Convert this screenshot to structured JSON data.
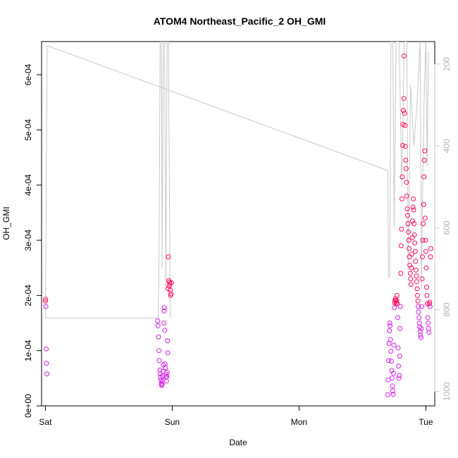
{
  "chart_data": {
    "type": "scatter",
    "title": "ATOM4 Northeast_Pacific_2 OH_GMI",
    "xlabel": "Date",
    "ylabel": "OH_GMI",
    "x_unit": "days since Sat 00:00",
    "x_ticks": [
      {
        "label": "Sat",
        "value": 0
      },
      {
        "label": "Sun",
        "value": 1
      },
      {
        "label": "Mon",
        "value": 2
      },
      {
        "label": "Tue",
        "value": 3
      }
    ],
    "xlim": [
      -0.03,
      3.07
    ],
    "y_ticks": [
      "0e+00",
      "1e-04",
      "2e-04",
      "3e-04",
      "4e-04",
      "5e-04",
      "6e-04"
    ],
    "ylim": [
      0,
      0.00066
    ],
    "secondary_axis": {
      "ticks": [
        "200",
        "400",
        "600",
        "800",
        "1000"
      ],
      "ylim": [
        1035,
        145
      ],
      "reversed": true,
      "color": "#c8c8c8"
    },
    "grid": false,
    "series": [
      {
        "kind": "points",
        "marker": "open-circle",
        "color_low": "#d21ee6",
        "color_high": "#ff0a5a",
        "color_threshold": 0.000185,
        "points": [
          [
            0.0,
            0.00019
          ],
          [
            0.002,
            0.000193
          ],
          [
            0.004,
            0.00018
          ],
          [
            0.006,
            0.000103
          ],
          [
            0.009,
            7.7e-05
          ],
          [
            0.012,
            5.8e-05
          ],
          [
            0.885,
            0.000154
          ],
          [
            0.888,
            0.000145
          ],
          [
            0.892,
            0.000125
          ],
          [
            0.895,
            0.0001
          ],
          [
            0.898,
            8.2e-05
          ],
          [
            0.902,
            6.5e-05
          ],
          [
            0.905,
            5.8e-05
          ],
          [
            0.908,
            5.2e-05
          ],
          [
            0.911,
            4.7e-05
          ],
          [
            0.914,
            4.1e-05
          ],
          [
            0.917,
            3.7e-05
          ],
          [
            0.92,
            3.9e-05
          ],
          [
            0.923,
            4.4e-05
          ],
          [
            0.925,
            5.4e-05
          ],
          [
            0.928,
            6.2e-05
          ],
          [
            0.931,
            7.4e-05
          ],
          [
            0.934,
            0.00015
          ],
          [
            0.936,
            0.000172
          ],
          [
            0.938,
            0.000178
          ],
          [
            0.941,
            0.000137
          ],
          [
            0.944,
            7.6e-05
          ],
          [
            0.947,
            6.9e-05
          ],
          [
            0.95,
            5.2e-05
          ],
          [
            0.952,
            5.7e-05
          ],
          [
            0.955,
            4.5e-05
          ],
          [
            0.957,
            5.3e-05
          ],
          [
            0.96,
            6.1e-05
          ],
          [
            0.962,
            0.000118
          ],
          [
            0.965,
            9.6e-05
          ],
          [
            0.968,
            0.000212
          ],
          [
            0.97,
            0.00027
          ],
          [
            0.973,
            0.000227
          ],
          [
            0.976,
            0.000217
          ],
          [
            0.979,
            0.000224
          ],
          [
            0.982,
            0.000221
          ],
          [
            0.985,
            0.00021
          ],
          [
            0.988,
            0.0002
          ],
          [
            0.991,
            0.000203
          ],
          [
            0.994,
            0.000223
          ],
          [
            2.7,
            2e-05
          ],
          [
            2.703,
            4.7e-05
          ],
          [
            2.706,
            8.2e-05
          ],
          [
            2.709,
            0.000113
          ],
          [
            2.712,
            0.000136
          ],
          [
            2.715,
            0.00015
          ],
          [
            2.718,
            0.000145
          ],
          [
            2.721,
            0.00012
          ],
          [
            2.724,
            9.9e-05
          ],
          [
            2.727,
            8.1e-05
          ],
          [
            2.73,
            6.4e-05
          ],
          [
            2.733,
            5e-05
          ],
          [
            2.736,
            3.6e-05
          ],
          [
            2.739,
            2.7e-05
          ],
          [
            2.742,
            2.1e-05
          ],
          [
            2.745,
            5.9e-05
          ],
          [
            2.748,
            0.00011
          ],
          [
            2.751,
            0.000178
          ],
          [
            2.754,
            0.000187
          ],
          [
            2.757,
            0.000191
          ],
          [
            2.76,
            0.000194
          ],
          [
            2.763,
            0.00019
          ],
          [
            2.766,
            0.000186
          ],
          [
            2.769,
            0.000191
          ],
          [
            2.772,
            0.0002
          ],
          [
            2.775,
            0.000185
          ],
          [
            2.778,
            0.00016
          ],
          [
            2.781,
            0.000105
          ],
          [
            2.784,
            7.2e-05
          ],
          [
            2.787,
            5e-05
          ],
          [
            2.79,
            5.5e-05
          ],
          [
            2.793,
            9e-05
          ],
          [
            2.796,
            0.00014
          ],
          [
            2.799,
            0.00018
          ],
          [
            2.802,
            0.00024
          ],
          [
            2.805,
            0.00029
          ],
          [
            2.808,
            0.00032
          ],
          [
            2.811,
            0.000375
          ],
          [
            2.814,
            0.000415
          ],
          [
            2.817,
            0.000472
          ],
          [
            2.82,
            0.00051
          ],
          [
            2.823,
            0.000535
          ],
          [
            2.826,
            0.000557
          ],
          [
            2.829,
            0.000634
          ],
          [
            2.832,
            0.00053
          ],
          [
            2.835,
            0.000508
          ],
          [
            2.838,
            0.00047
          ],
          [
            2.841,
            0.000445
          ],
          [
            2.844,
            0.00043
          ],
          [
            2.847,
            0.000405
          ],
          [
            2.85,
            0.00038
          ],
          [
            2.853,
            0.000357
          ],
          [
            2.856,
            0.000345
          ],
          [
            2.859,
            0.00033
          ],
          [
            2.862,
            0.000315
          ],
          [
            2.865,
            0.0003
          ],
          [
            2.868,
            0.000285
          ],
          [
            2.871,
            0.00027
          ],
          [
            2.874,
            0.000255
          ],
          [
            2.877,
            0.00024
          ],
          [
            2.88,
            0.00023
          ],
          [
            2.883,
            0.00022
          ],
          [
            2.886,
            0.00025
          ],
          [
            2.889,
            0.000275
          ],
          [
            2.892,
            0.000305
          ],
          [
            2.895,
            0.000335
          ],
          [
            2.898,
            0.00036
          ],
          [
            2.901,
            0.000375
          ],
          [
            2.904,
            0.000355
          ],
          [
            2.907,
            0.00033
          ],
          [
            2.91,
            0.00031
          ],
          [
            2.913,
            0.000295
          ],
          [
            2.916,
            0.00028
          ],
          [
            2.919,
            0.000262
          ],
          [
            2.922,
            0.000246
          ],
          [
            2.925,
            0.000235
          ],
          [
            2.928,
            0.000225
          ],
          [
            2.931,
            0.000212
          ],
          [
            2.934,
            0.0002
          ],
          [
            2.937,
            0.00019
          ],
          [
            2.94,
            0.00018
          ],
          [
            2.943,
            0.00017
          ],
          [
            2.946,
            0.00016
          ],
          [
            2.949,
            0.00015
          ],
          [
            2.952,
            0.000143
          ],
          [
            2.955,
            0.000135
          ],
          [
            2.958,
            0.000128
          ],
          [
            2.961,
            0.000124
          ],
          [
            2.964,
            0.00014
          ],
          [
            2.967,
            0.00018
          ],
          [
            2.97,
            0.00023
          ],
          [
            2.973,
            0.00027
          ],
          [
            2.976,
            0.0003
          ],
          [
            2.979,
            0.00033
          ],
          [
            2.982,
            0.000365
          ],
          [
            2.985,
            0.000415
          ],
          [
            2.988,
            0.000445
          ],
          [
            2.991,
            0.000462
          ],
          [
            2.994,
            0.00034
          ],
          [
            2.997,
            0.0003
          ],
          [
            3.0,
            0.00028
          ],
          [
            3.003,
            0.00025
          ],
          [
            3.006,
            0.000215
          ],
          [
            3.009,
            0.0002
          ],
          [
            3.012,
            0.000185
          ],
          [
            3.015,
            0.00016
          ],
          [
            3.018,
            0.00015
          ],
          [
            3.021,
            0.00014
          ],
          [
            3.024,
            0.000133
          ],
          [
            3.027,
            0.000185
          ],
          [
            3.03,
            0.000188
          ],
          [
            3.033,
            0.00018
          ],
          [
            3.036,
            0.00027
          ],
          [
            3.039,
            0.000285
          ]
        ]
      },
      {
        "kind": "line",
        "axis": "secondary",
        "color": "#c8c8c8",
        "points": [
          [
            0.0,
            820
          ],
          [
            0.015,
            155
          ],
          [
            2.7,
            460
          ],
          [
            2.705,
            720
          ],
          [
            2.715,
            720
          ],
          [
            2.725,
            145
          ],
          [
            2.74,
            145
          ],
          [
            2.75,
            600
          ],
          [
            2.765,
            145
          ],
          [
            2.79,
            145
          ],
          [
            2.81,
            500
          ],
          [
            2.83,
            145
          ],
          [
            2.85,
            145
          ],
          [
            2.86,
            700
          ],
          [
            2.88,
            250
          ],
          [
            2.905,
            400
          ],
          [
            2.93,
            300
          ],
          [
            2.955,
            145
          ],
          [
            2.965,
            750
          ],
          [
            2.975,
            500
          ],
          [
            2.985,
            300
          ],
          [
            3.0,
            145
          ],
          [
            3.01,
            450
          ],
          [
            3.02,
            170
          ]
        ]
      },
      {
        "kind": "line",
        "axis": "secondary",
        "color": "#c8c8c8",
        "points": [
          [
            0.0,
            820
          ],
          [
            0.89,
            820
          ],
          [
            0.895,
            720
          ],
          [
            0.905,
            145
          ],
          [
            0.915,
            145
          ],
          [
            0.92,
            700
          ],
          [
            0.93,
            145
          ],
          [
            0.94,
            145
          ],
          [
            0.95,
            750
          ],
          [
            0.96,
            145
          ],
          [
            0.97,
            145
          ],
          [
            0.985,
            820
          ]
        ]
      }
    ]
  }
}
